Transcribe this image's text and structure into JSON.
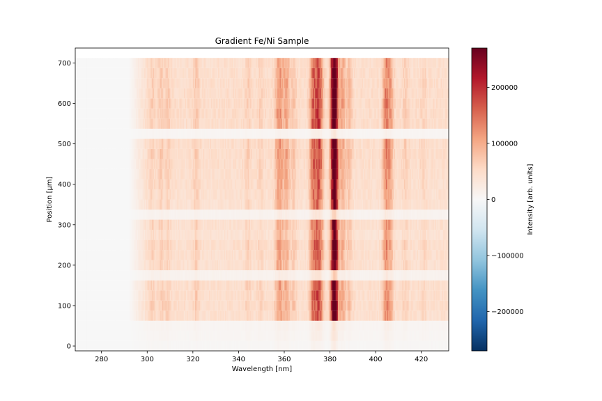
{
  "chart_data": {
    "type": "heatmap",
    "title": "Gradient Fe/Ni Sample",
    "xlabel": "Wavelength [nm]",
    "ylabel": "Position [μm]",
    "xlim": [
      268.5,
      432
    ],
    "ylim": [
      -12,
      737
    ],
    "x_ticks": [
      280,
      300,
      320,
      340,
      360,
      380,
      400,
      420
    ],
    "y_ticks": [
      0,
      100,
      200,
      300,
      400,
      500,
      600,
      700
    ],
    "colorbar": {
      "label": "Intensity [arb. units]",
      "colormap": "RdBu_r",
      "vmin": -270000,
      "vmax": 270000,
      "ticks": [
        -200000,
        -100000,
        0,
        100000,
        200000
      ],
      "tick_labels": [
        "−200000",
        "−100000",
        "0",
        "100000",
        "200000"
      ]
    },
    "position_step_um": 25,
    "positions_um": [
      0,
      25,
      50,
      75,
      100,
      125,
      150,
      175,
      200,
      225,
      250,
      275,
      300,
      325,
      350,
      375,
      400,
      425,
      450,
      475,
      500,
      525,
      550,
      575,
      600,
      625,
      650,
      675,
      700
    ],
    "row_scale": [
      0.06,
      0.1,
      0.12,
      0.88,
      0.95,
      0.92,
      0.93,
      0.2,
      0.85,
      0.9,
      0.92,
      0.78,
      0.88,
      0.18,
      0.82,
      0.86,
      0.9,
      0.92,
      0.95,
      0.97,
      0.95,
      0.1,
      0.95,
      0.98,
      1.0,
      0.97,
      0.95,
      0.93,
      0.9
    ],
    "spectrum_baseline": {
      "onset_nm": 292,
      "full_nm": 300,
      "level": 50000
    },
    "emission_lines": [
      {
        "wavelength_nm": 302.1,
        "peak": 20000
      },
      {
        "wavelength_nm": 306.0,
        "peak": 25000
      },
      {
        "wavelength_nm": 309.0,
        "peak": 22000
      },
      {
        "wavelength_nm": 321.5,
        "peak": 28000
      },
      {
        "wavelength_nm": 344.0,
        "peak": 22000
      },
      {
        "wavelength_nm": 349.5,
        "peak": 18000
      },
      {
        "wavelength_nm": 357.0,
        "peak": 45000
      },
      {
        "wavelength_nm": 358.5,
        "peak": 55000
      },
      {
        "wavelength_nm": 361.0,
        "peak": 60000
      },
      {
        "wavelength_nm": 364.0,
        "peak": 30000
      },
      {
        "wavelength_nm": 372.5,
        "peak": 110000
      },
      {
        "wavelength_nm": 374.5,
        "peak": 110000
      },
      {
        "wavelength_nm": 376.0,
        "peak": 80000
      },
      {
        "wavelength_nm": 381.5,
        "peak": 200000
      },
      {
        "wavelength_nm": 382.5,
        "peak": 160000
      },
      {
        "wavelength_nm": 385.5,
        "peak": 60000
      },
      {
        "wavelength_nm": 388.5,
        "peak": 35000
      },
      {
        "wavelength_nm": 404.5,
        "peak": 90000
      },
      {
        "wavelength_nm": 406.5,
        "peak": 60000
      },
      {
        "wavelength_nm": 413.0,
        "peak": 20000
      },
      {
        "wavelength_nm": 421.0,
        "peak": 15000
      }
    ]
  }
}
